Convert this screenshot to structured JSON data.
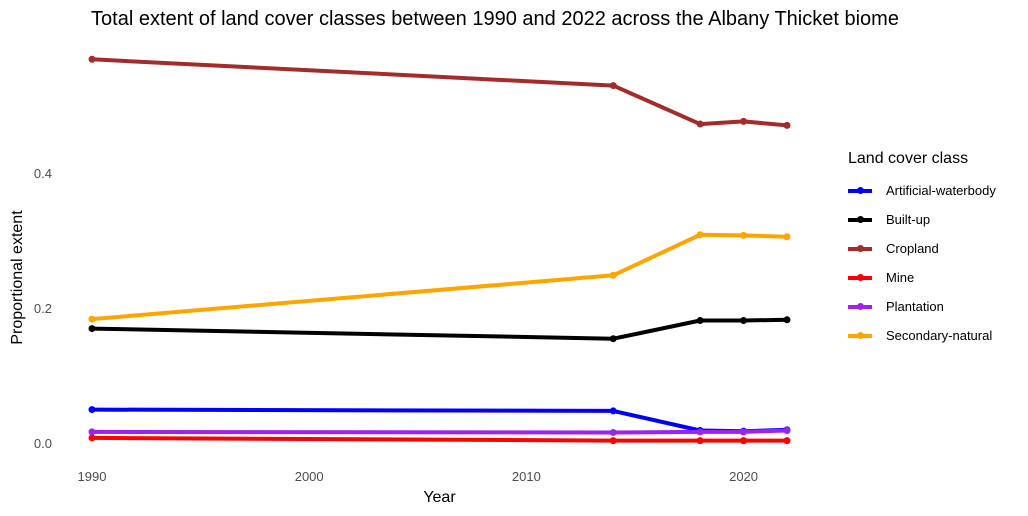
{
  "chart_data": {
    "type": "line",
    "title": "Total extent of land cover classes between 1990 and 2022 across the Albany Thicket biome",
    "xlabel": "Year",
    "ylabel": "Proportional extent",
    "xlim": [
      1990,
      2022
    ],
    "ylim": [
      0,
      0.575
    ],
    "x_ticks": [
      1990,
      2000,
      2010,
      2020
    ],
    "y_ticks": [
      0.0,
      0.2,
      0.4
    ],
    "y_tick_labels": [
      "0.0",
      "0.2",
      "0.4"
    ],
    "grid": false,
    "legend": {
      "title": "Land cover class",
      "position": "right"
    },
    "x": [
      1990,
      2014,
      2018,
      2020,
      2022
    ],
    "series": [
      {
        "name": "Artificial-waterbody",
        "color": "#0000ff",
        "values": [
          0.051,
          0.049,
          0.02,
          0.019,
          0.021
        ]
      },
      {
        "name": "Built-up",
        "color": "#000000",
        "values": [
          0.171,
          0.156,
          0.183,
          0.183,
          0.184
        ]
      },
      {
        "name": "Cropland",
        "color": "#a52a2a",
        "values": [
          0.57,
          0.531,
          0.474,
          0.478,
          0.472
        ]
      },
      {
        "name": "Mine",
        "color": "#ff0000",
        "values": [
          0.009,
          0.005,
          0.005,
          0.005,
          0.005
        ]
      },
      {
        "name": "Plantation",
        "color": "#a020f0",
        "values": [
          0.018,
          0.017,
          0.018,
          0.018,
          0.02
        ]
      },
      {
        "name": "Secondary-natural",
        "color": "#ffa500",
        "values": [
          0.185,
          0.25,
          0.31,
          0.309,
          0.307
        ]
      }
    ]
  }
}
